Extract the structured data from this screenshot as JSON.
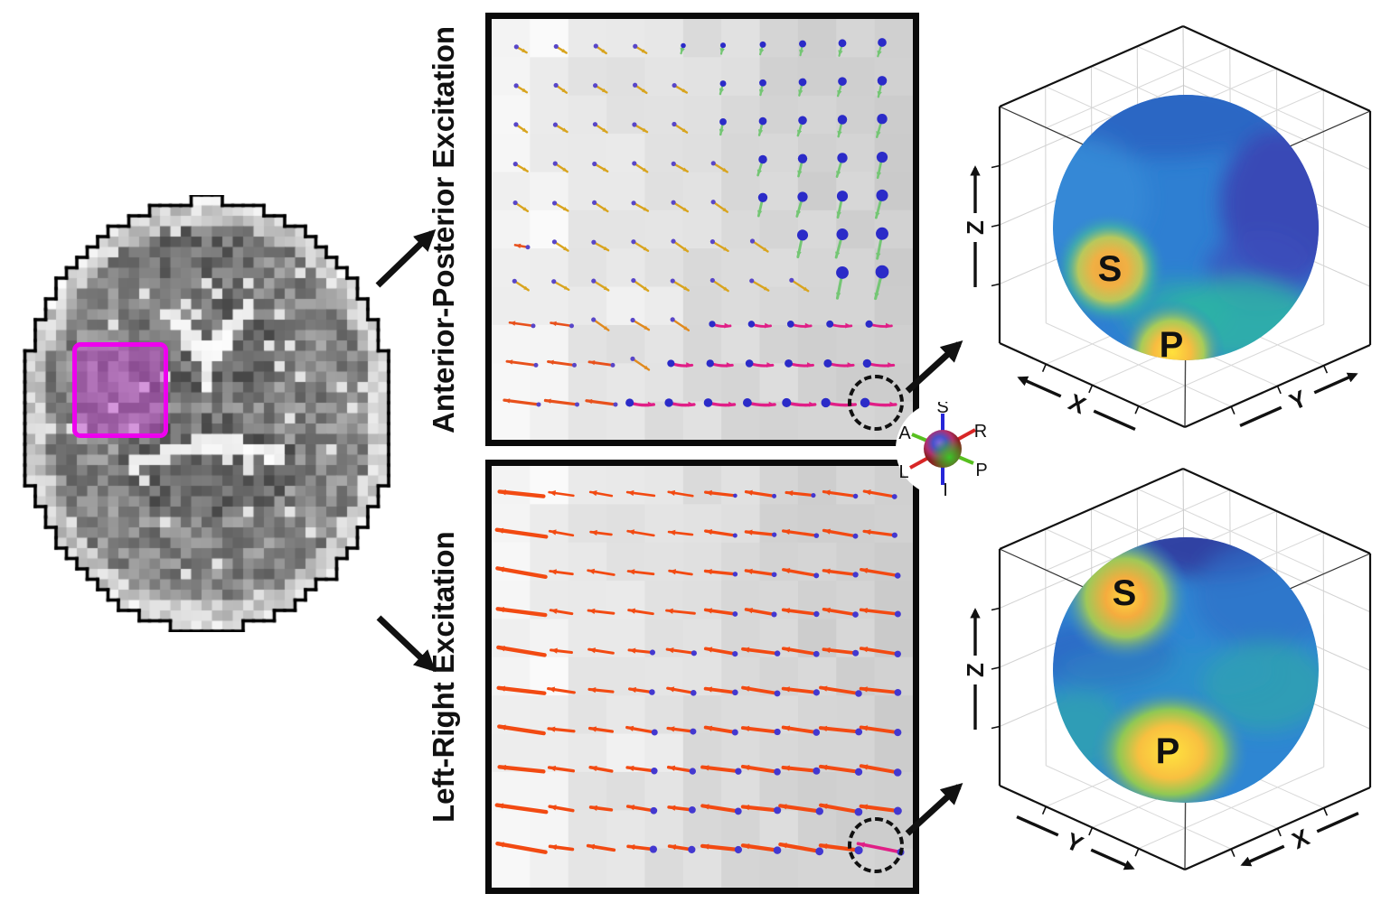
{
  "brain": {
    "description": "pixelated axial brain MRI slice",
    "roi_border_color": "#EE00EE",
    "roi_fill_color": "rgba(195,64,210,0.48)"
  },
  "panels": [
    {
      "id": "anterior-posterior",
      "title": "Anterior-Posterior Excitation",
      "arrow_grid": [
        "YYYYGGGGGG",
        "YYYYYGGGGG",
        "YYYYYGGGGG",
        "YYYYYYGGGG",
        "YYYYYYGGGG",
        "OYYYYYYGGG",
        "YYYYYYYYGG",
        "OOYYYPPPPP",
        "OOOYPPPPPP",
        "OOOPPPPPPP"
      ],
      "arrow_types": {
        "Y": "small oblique yellow vector with purple base dot",
        "G": "blue ball with green vector pointing down",
        "P": "blue ball with pink vector pointing right",
        "O": "orange vector pointing left with purple base dot"
      },
      "highlight": "dashed circle around bottom-right vector"
    },
    {
      "id": "left-right",
      "title": "Left-Right Excitation",
      "arrow_grid": [
        "RRRRRRRRRR",
        "RRRRRRRRRR",
        "RRRRRRRRRR",
        "RRRRRRRRRR",
        "RRRRRRRRRR",
        "RRRRRRRRRR",
        "RRRRRRRRRR",
        "RRRRRRRRRR",
        "RRRRRRRRRR",
        "RRRRRRRRRM"
      ],
      "arrow_types": {
        "R": "red-orange vector pointing left with blue base dot",
        "M": "magenta vector pointing left (highlighted)"
      },
      "highlight": "dashed circle around bottom-right vector"
    }
  ],
  "legend": {
    "s": "S",
    "i": "I",
    "a": "A",
    "p": "P",
    "r": "R",
    "l": "L",
    "color_si": "#2626D8",
    "color_rl": "#D82626",
    "color_ap": "#58C020"
  },
  "spheres": [
    {
      "id": "top",
      "hot_labels": {
        "s": "S",
        "p": "P"
      },
      "axis": {
        "z": "Z",
        "bottom_left": "X",
        "bottom_right": "Y"
      }
    },
    {
      "id": "bottom",
      "hot_labels": {
        "s": "S",
        "p": "P"
      },
      "axis": {
        "z": "Z",
        "bottom_left": "Y",
        "bottom_right": "X"
      }
    }
  ],
  "arrow_colors": {
    "yellow": "#D8A41E",
    "green": "#74C674",
    "pink": "#E01F86",
    "orange": "#E8511C",
    "red_orange": "#F24A12",
    "blue_ball": "#2B2BC8",
    "purple_dot": "#5846C8"
  }
}
